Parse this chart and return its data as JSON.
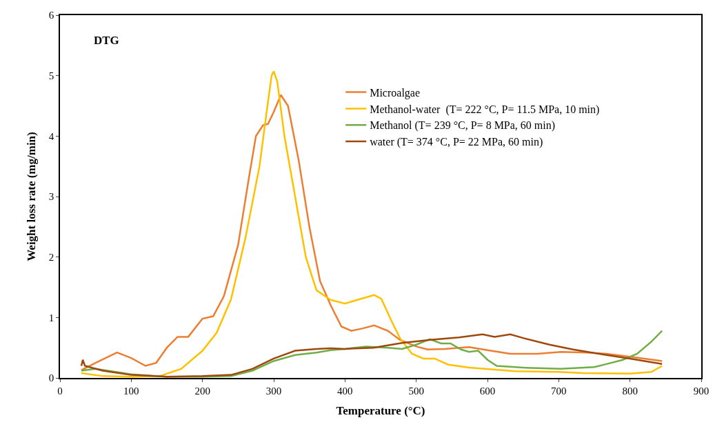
{
  "chart_data": {
    "type": "line",
    "title": "DTG",
    "xlabel": "Temperature (°C)",
    "ylabel": "Weight loss rate (mg/min)",
    "xlim": [
      0,
      900
    ],
    "xticks": [
      0,
      100,
      200,
      300,
      400,
      500,
      600,
      700,
      800,
      900
    ],
    "ylim": [
      0,
      6
    ],
    "yticks": [
      0,
      1,
      2,
      3,
      4,
      5,
      6
    ],
    "legend": "top right",
    "marker": "none",
    "line_style": "solid",
    "series": [
      {
        "name": "Microalgae",
        "color": "#ed7d31",
        "x": [
          30,
          50,
          80,
          100,
          120,
          135,
          150,
          165,
          180,
          200,
          215,
          230,
          250,
          265,
          275,
          285,
          292,
          300,
          310,
          320,
          335,
          350,
          365,
          380,
          395,
          409,
          425,
          441,
          460,
          477,
          500,
          516,
          540,
          574,
          600,
          632,
          670,
          703,
          740,
          767,
          800,
          845
        ],
        "values": [
          0.13,
          0.25,
          0.42,
          0.33,
          0.2,
          0.25,
          0.5,
          0.68,
          0.68,
          0.98,
          1.02,
          1.35,
          2.2,
          3.3,
          4.0,
          4.18,
          4.2,
          4.4,
          4.68,
          4.5,
          3.6,
          2.5,
          1.6,
          1.2,
          0.85,
          0.78,
          0.82,
          0.87,
          0.78,
          0.63,
          0.52,
          0.47,
          0.48,
          0.51,
          0.46,
          0.4,
          0.4,
          0.43,
          0.42,
          0.4,
          0.35,
          0.28
        ]
      },
      {
        "name": "Methanol-water  (T= 222 °C, P= 11.5 MPa, 10 min)",
        "color": "#ffc000",
        "x": [
          30,
          60,
          100,
          140,
          170,
          200,
          220,
          240,
          260,
          280,
          290,
          297,
          300,
          305,
          315,
          330,
          345,
          360,
          380,
          400,
          420,
          441,
          451,
          465,
          477,
          494,
          510,
          526,
          545,
          574,
          639,
          700,
          735,
          800,
          830,
          845
        ],
        "values": [
          0.08,
          0.03,
          0.02,
          0.03,
          0.15,
          0.45,
          0.75,
          1.3,
          2.3,
          3.5,
          4.4,
          5.0,
          5.07,
          4.9,
          4.0,
          3.0,
          2.0,
          1.45,
          1.29,
          1.23,
          1.3,
          1.37,
          1.31,
          0.95,
          0.66,
          0.4,
          0.32,
          0.32,
          0.22,
          0.17,
          0.11,
          0.1,
          0.08,
          0.07,
          0.1,
          0.2
        ]
      },
      {
        "name": "Methanol (T= 239 °C, P= 8 MPa, 60 min)",
        "color": "#70ad47",
        "x": [
          30,
          50,
          100,
          150,
          200,
          240,
          270,
          300,
          330,
          360,
          380,
          400,
          430,
          460,
          480,
          500,
          519,
          535,
          548,
          563,
          574,
          587,
          600,
          613,
          650,
          703,
          750,
          767,
          790,
          810,
          830,
          845
        ],
        "values": [
          0.12,
          0.15,
          0.06,
          0.02,
          0.02,
          0.03,
          0.12,
          0.28,
          0.38,
          0.42,
          0.46,
          0.48,
          0.52,
          0.5,
          0.48,
          0.55,
          0.64,
          0.57,
          0.57,
          0.47,
          0.43,
          0.45,
          0.3,
          0.2,
          0.17,
          0.15,
          0.18,
          0.23,
          0.3,
          0.4,
          0.6,
          0.78
        ]
      },
      {
        "name": "water (T= 374 °C, P= 22 MPa, 60 min)",
        "color": "#9e480e",
        "x": [
          30,
          32,
          35,
          60,
          100,
          150,
          200,
          240,
          270,
          300,
          330,
          360,
          380,
          400,
          440,
          480,
          520,
          560,
          593,
          610,
          632,
          650,
          687,
          720,
          767,
          800,
          845
        ],
        "values": [
          0.2,
          0.3,
          0.2,
          0.12,
          0.05,
          0.02,
          0.03,
          0.05,
          0.15,
          0.32,
          0.45,
          0.48,
          0.49,
          0.48,
          0.5,
          0.58,
          0.63,
          0.67,
          0.72,
          0.68,
          0.72,
          0.66,
          0.55,
          0.47,
          0.38,
          0.32,
          0.23
        ]
      }
    ]
  }
}
